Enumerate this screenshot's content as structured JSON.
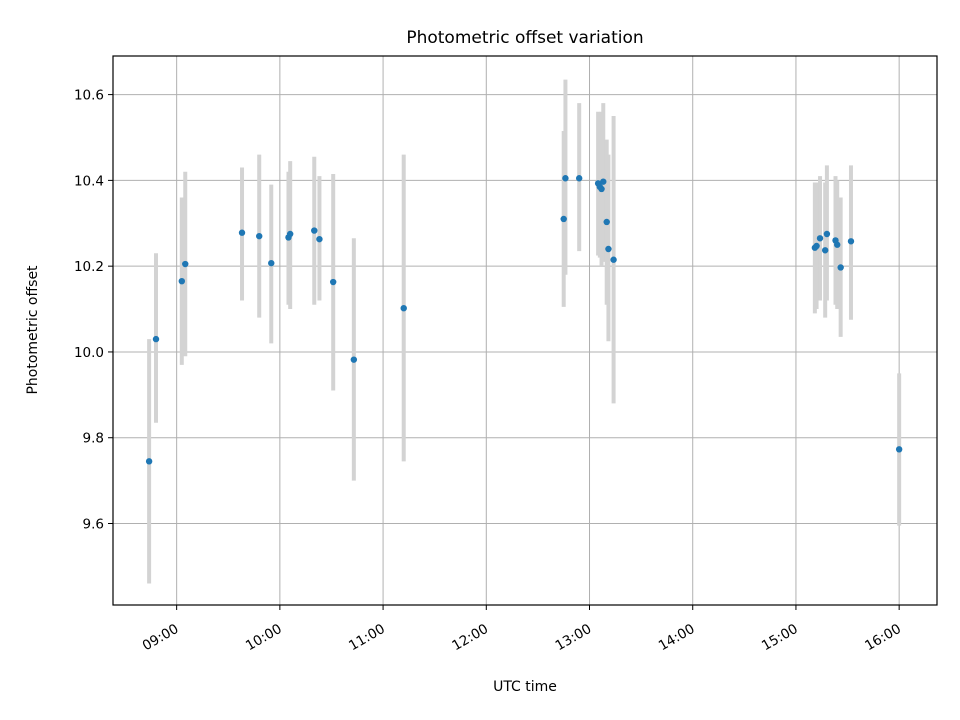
{
  "chart_data": {
    "type": "scatter",
    "title": "Photometric offset variation",
    "xlabel": "UTC time",
    "ylabel": "Photometric offset",
    "x_tick_labels": [
      "09:00",
      "10:00",
      "11:00",
      "12:00",
      "13:00",
      "14:00",
      "15:00",
      "16:00"
    ],
    "y_tick_labels": [
      "9.6",
      "9.8",
      "10.0",
      "10.2",
      "10.4",
      "10.6"
    ],
    "x_ticks": [
      "09:00",
      "10:00",
      "11:00",
      "12:00",
      "13:00",
      "14:00",
      "15:00",
      "16:00"
    ],
    "y_ticks": [
      9.6,
      9.8,
      10.0,
      10.2,
      10.4,
      10.6
    ],
    "xlim": [
      "08:23",
      "16:22"
    ],
    "ylim": [
      9.41,
      10.69
    ],
    "grid": true,
    "colors": {
      "marker": "#1f77b4",
      "errorbar": "#d3d3d3",
      "grid": "#b0b0b0"
    },
    "points": [
      {
        "x": "08:44",
        "y": 9.745,
        "lo": 9.46,
        "hi": 10.03
      },
      {
        "x": "08:48",
        "y": 10.03,
        "lo": 9.835,
        "hi": 10.23
      },
      {
        "x": "09:03",
        "y": 10.165,
        "lo": 9.97,
        "hi": 10.36
      },
      {
        "x": "09:05",
        "y": 10.205,
        "lo": 9.99,
        "hi": 10.42
      },
      {
        "x": "09:38",
        "y": 10.278,
        "lo": 10.12,
        "hi": 10.43
      },
      {
        "x": "09:48",
        "y": 10.27,
        "lo": 10.08,
        "hi": 10.46
      },
      {
        "x": "09:55",
        "y": 10.207,
        "lo": 10.02,
        "hi": 10.39
      },
      {
        "x": "10:05",
        "y": 10.267,
        "lo": 10.11,
        "hi": 10.42
      },
      {
        "x": "10:06",
        "y": 10.275,
        "lo": 10.1,
        "hi": 10.445
      },
      {
        "x": "10:20",
        "y": 10.283,
        "lo": 10.11,
        "hi": 10.455
      },
      {
        "x": "10:23",
        "y": 10.263,
        "lo": 10.12,
        "hi": 10.41
      },
      {
        "x": "10:31",
        "y": 10.163,
        "lo": 9.91,
        "hi": 10.415
      },
      {
        "x": "10:43",
        "y": 9.982,
        "lo": 9.7,
        "hi": 10.265
      },
      {
        "x": "11:12",
        "y": 10.102,
        "lo": 9.745,
        "hi": 10.46
      },
      {
        "x": "12:45",
        "y": 10.31,
        "lo": 10.105,
        "hi": 10.515
      },
      {
        "x": "12:46",
        "y": 10.405,
        "lo": 10.18,
        "hi": 10.635
      },
      {
        "x": "12:54",
        "y": 10.405,
        "lo": 10.235,
        "hi": 10.58
      },
      {
        "x": "13:05",
        "y": 10.393,
        "lo": 10.225,
        "hi": 10.56
      },
      {
        "x": "13:06",
        "y": 10.385,
        "lo": 10.22,
        "hi": 10.55
      },
      {
        "x": "13:07",
        "y": 10.38,
        "lo": 10.2,
        "hi": 10.56
      },
      {
        "x": "13:08",
        "y": 10.397,
        "lo": 10.21,
        "hi": 10.58
      },
      {
        "x": "13:10",
        "y": 10.303,
        "lo": 10.11,
        "hi": 10.495
      },
      {
        "x": "13:11",
        "y": 10.24,
        "lo": 10.025,
        "hi": 10.46
      },
      {
        "x": "13:14",
        "y": 10.215,
        "lo": 9.88,
        "hi": 10.55
      },
      {
        "x": "15:11",
        "y": 10.243,
        "lo": 10.09,
        "hi": 10.395
      },
      {
        "x": "15:12",
        "y": 10.247,
        "lo": 10.1,
        "hi": 10.395
      },
      {
        "x": "15:14",
        "y": 10.265,
        "lo": 10.12,
        "hi": 10.41
      },
      {
        "x": "15:17",
        "y": 10.237,
        "lo": 10.08,
        "hi": 10.395
      },
      {
        "x": "15:18",
        "y": 10.275,
        "lo": 10.12,
        "hi": 10.435
      },
      {
        "x": "15:23",
        "y": 10.26,
        "lo": 10.11,
        "hi": 10.41
      },
      {
        "x": "15:24",
        "y": 10.25,
        "lo": 10.1,
        "hi": 10.4
      },
      {
        "x": "15:26",
        "y": 10.197,
        "lo": 10.035,
        "hi": 10.36
      },
      {
        "x": "15:32",
        "y": 10.258,
        "lo": 10.075,
        "hi": 10.435
      },
      {
        "x": "15:60",
        "y": 9.773,
        "lo": 9.595,
        "hi": 9.95
      }
    ]
  }
}
